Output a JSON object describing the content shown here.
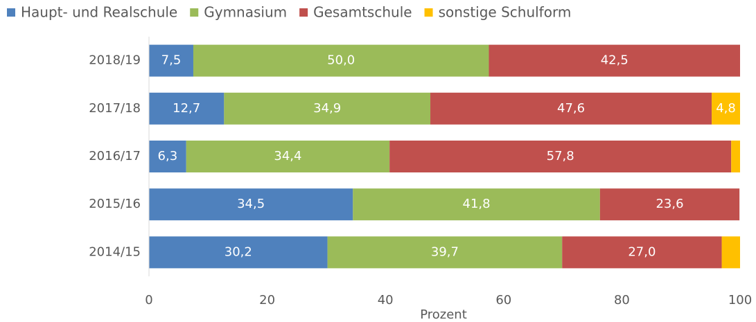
{
  "chart_data": {
    "type": "bar",
    "orientation": "horizontal",
    "stacked": true,
    "categories": [
      "2018/19",
      "2017/18",
      "2016/17",
      "2015/16",
      "2014/15"
    ],
    "series": [
      {
        "name": "Haupt- und Realschule",
        "color": "#4f81bd",
        "values": [
          7.5,
          12.7,
          6.3,
          34.5,
          30.2
        ],
        "value_labels": [
          "7,5",
          "12,7",
          "6,3",
          "34,5",
          "30,2"
        ]
      },
      {
        "name": "Gymnasium",
        "color": "#9bbb59",
        "values": [
          50.0,
          34.9,
          34.4,
          41.8,
          39.7
        ],
        "value_labels": [
          "50,0",
          "34,9",
          "34,4",
          "41,8",
          "39,7"
        ]
      },
      {
        "name": "Gesamtschule",
        "color": "#c0504d",
        "values": [
          42.5,
          47.6,
          57.8,
          23.6,
          27.0
        ],
        "value_labels": [
          "42,5",
          "47,6",
          "57,8",
          "23,6",
          "27,0"
        ]
      },
      {
        "name": "sonstige Schulform",
        "color": "#ffc000",
        "values": [
          0,
          4.8,
          1.5,
          0,
          3.1
        ],
        "value_labels": [
          null,
          "4,8",
          null,
          null,
          null
        ]
      }
    ],
    "xlabel": "Prozent",
    "xlim": [
      0,
      100
    ],
    "xticks": [
      0,
      20,
      40,
      60,
      80,
      100
    ],
    "grid": false,
    "legend": "top"
  }
}
